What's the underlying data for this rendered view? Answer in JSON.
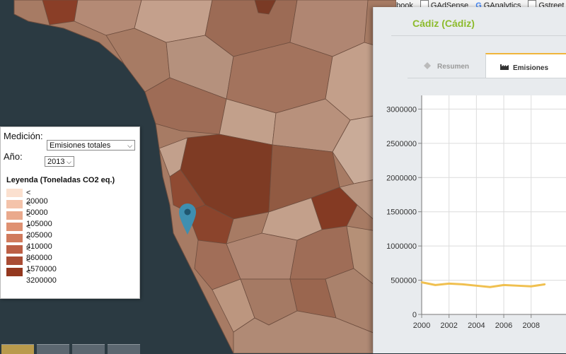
{
  "browser_bookmarks": {
    "items": [
      {
        "label": "GAdSense",
        "icon": "page-icon"
      },
      {
        "label": "GAnalytics",
        "icon": "google-icon"
      },
      {
        "label": "Gstreet",
        "icon": "page-icon"
      }
    ],
    "partial_prefix": "book",
    "translate_icon": "translate-icon"
  },
  "map": {
    "marker_icon": "map-pin-icon",
    "sea_color": "#2b3a42",
    "land_colors": [
      "#a77b64",
      "#915c44",
      "#7a3a25",
      "#c4a08c",
      "#b5917d"
    ]
  },
  "controls": {
    "measure_label": "Medición:",
    "measure_value": "Emisiones totales",
    "year_label": "Año:",
    "year_value": "2013"
  },
  "legend": {
    "title": "Leyenda (Toneladas CO2 eq.)",
    "items": [
      {
        "label": "< 20000",
        "color": "#fbe0cf"
      },
      {
        "label": "< 50000",
        "color": "#f4c3aa"
      },
      {
        "label": "< 105000",
        "color": "#eaa98c"
      },
      {
        "label": "< 205000",
        "color": "#df9172"
      },
      {
        "label": "< 410000",
        "color": "#d07a5c"
      },
      {
        "label": "< 860000",
        "color": "#bc5f45"
      },
      {
        "label": "< 1570000",
        "color": "#a94c34"
      },
      {
        "label": "< 3200000",
        "color": "#94381f"
      }
    ]
  },
  "panel": {
    "title": "Cádiz (Cádiz)",
    "tabs": [
      {
        "label": "Resumen",
        "icon": "summary-icon",
        "active": false
      },
      {
        "label": "Emisiones",
        "icon": "factory-icon",
        "active": true
      }
    ]
  },
  "chart_data": {
    "type": "line",
    "y_ticks": [
      "3000000",
      "2500000",
      "2000000",
      "1500000",
      "1000000",
      "500000",
      "0"
    ],
    "x_ticks": [
      "2000",
      "2002",
      "2004",
      "2006",
      "2008"
    ],
    "ylim": [
      0,
      3200000
    ],
    "grid": true,
    "series": [
      {
        "color": "#f0c050",
        "x": [
          2000,
          2001,
          2002,
          2003,
          2004,
          2005,
          2006,
          2007,
          2008,
          2009
        ],
        "values": [
          470000,
          430000,
          450000,
          440000,
          420000,
          400000,
          430000,
          420000,
          410000,
          440000
        ]
      }
    ]
  }
}
